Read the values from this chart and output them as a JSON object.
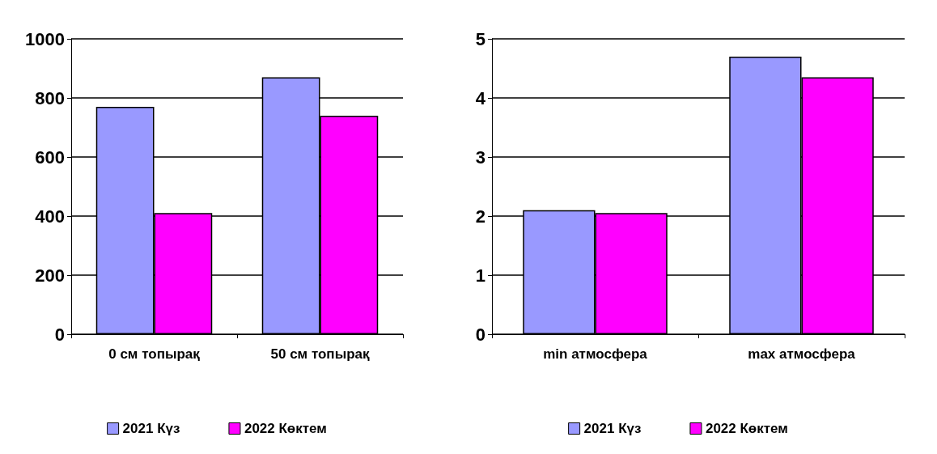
{
  "chart_data": [
    {
      "type": "bar",
      "categories": [
        "0 см топырақ",
        "50 см топырақ"
      ],
      "series": [
        {
          "name": "2021 Күз",
          "color": "#9999ff",
          "values": [
            770,
            870
          ]
        },
        {
          "name": "2022 Көктем",
          "color": "#ff00ff",
          "values": [
            410,
            740
          ]
        }
      ],
      "ylim": [
        0,
        1000
      ],
      "yticks": [
        0,
        200,
        400,
        600,
        800,
        1000
      ],
      "grid": "y",
      "legend": "bottom"
    },
    {
      "type": "bar",
      "categories": [
        "min атмосфера",
        "max атмосфера"
      ],
      "series": [
        {
          "name": "2021 Күз",
          "color": "#9999ff",
          "values": [
            2.1,
            4.7
          ]
        },
        {
          "name": "2022 Көктем",
          "color": "#ff00ff",
          "values": [
            2.05,
            4.35
          ]
        }
      ],
      "ylim": [
        0,
        5
      ],
      "yticks": [
        0,
        1,
        2,
        3,
        4,
        5
      ],
      "grid": "y",
      "legend": "bottom"
    }
  ]
}
